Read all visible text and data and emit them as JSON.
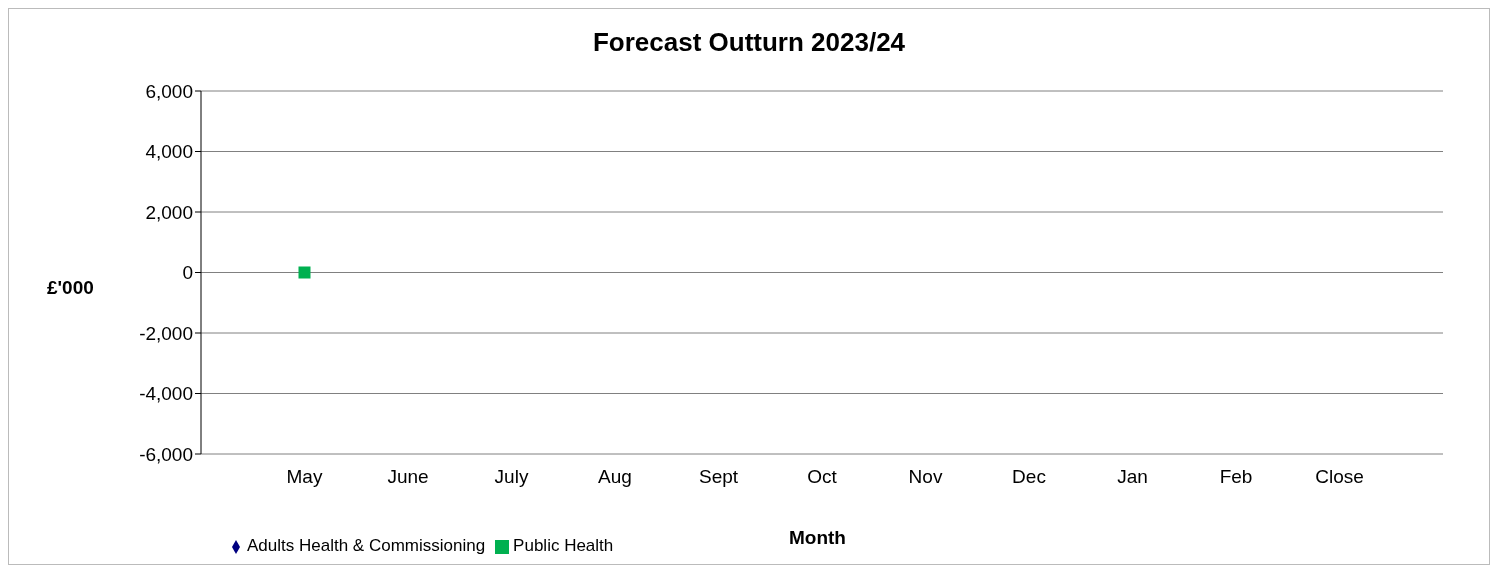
{
  "chart_data": {
    "type": "line",
    "title": "Forecast Outturn 2023/24",
    "xlabel": "Month",
    "ylabel": "£'000",
    "categories": [
      null,
      "May",
      "June",
      "July",
      "Aug",
      "Sept",
      "Oct",
      "Nov",
      "Dec",
      "Jan",
      "Feb",
      "Close",
      null
    ],
    "series": [
      {
        "name": "Adults Health & Commissioning",
        "color": "#000080",
        "marker": "diamond",
        "values": [
          null,
          null,
          null,
          null,
          null,
          null,
          null,
          null,
          null,
          null,
          null,
          null,
          null
        ]
      },
      {
        "name": "Public Health",
        "color": "#00b050",
        "marker": "square",
        "values": [
          null,
          0,
          null,
          null,
          null,
          null,
          null,
          null,
          null,
          null,
          null,
          null,
          null
        ]
      }
    ],
    "ylim": [
      -6000,
      6000
    ],
    "yticks": [
      {
        "value": -6000,
        "label": "-6,000"
      },
      {
        "value": -4000,
        "label": "-4,000"
      },
      {
        "value": -2000,
        "label": "-2,000"
      },
      0,
      {
        "value": 2000,
        "label": "2,000"
      },
      {
        "value": 4000,
        "label": "4,000"
      },
      {
        "value": 6000,
        "label": "6,000"
      }
    ],
    "grid": "y",
    "legend": "bottom left"
  }
}
